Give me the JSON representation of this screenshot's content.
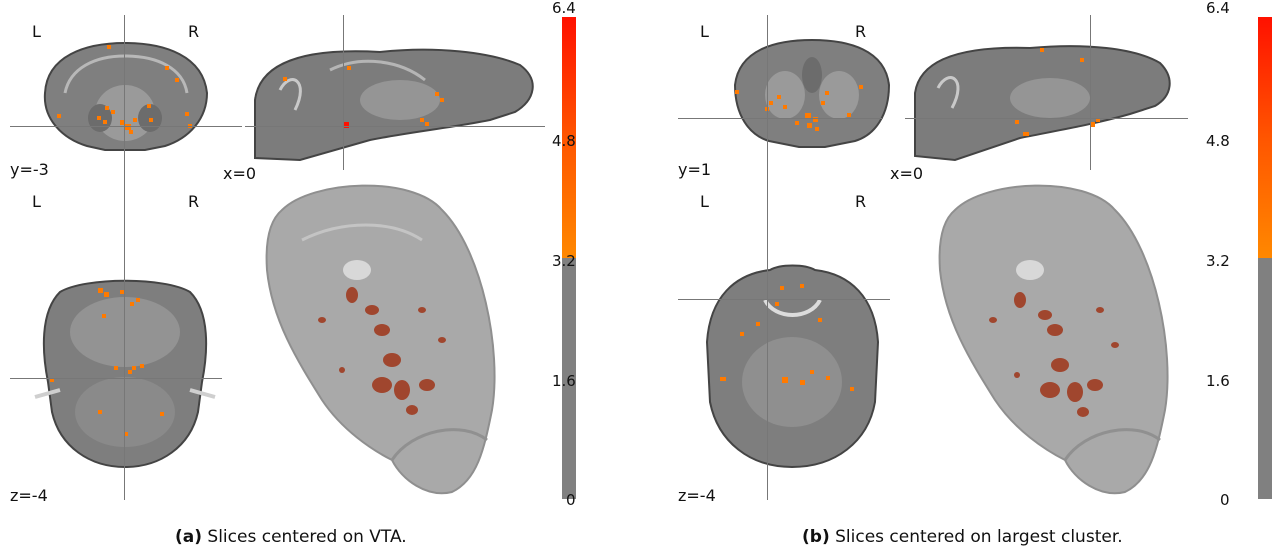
{
  "panels": [
    {
      "id": "a",
      "caption_prefix": "(a)",
      "caption_text": "Slices centered on VTA.",
      "coronal_label": "y=-3",
      "sagittal_label": "x=0",
      "axial_label": "z=-4",
      "left_marker": "L",
      "right_marker": "R"
    },
    {
      "id": "b",
      "caption_prefix": "(b)",
      "caption_text": "Slices centered on largest cluster.",
      "coronal_label": "y=1",
      "sagittal_label": "x=0",
      "axial_label": "z=-4",
      "left_marker": "L",
      "right_marker": "R"
    }
  ],
  "colorbar": {
    "ticks": [
      "6.4",
      "4.8",
      "3.2",
      "1.6",
      "0"
    ],
    "threshold": 3.2,
    "max": 6.4,
    "colors": {
      "low": "#808080",
      "mid": "#ff8800",
      "high": "#ff1100"
    }
  },
  "colors": {
    "brain": "#8a8a8a",
    "activation": "#ff7a00",
    "render_brain": "#a9a9a9",
    "render_blob": "#a0462e"
  }
}
